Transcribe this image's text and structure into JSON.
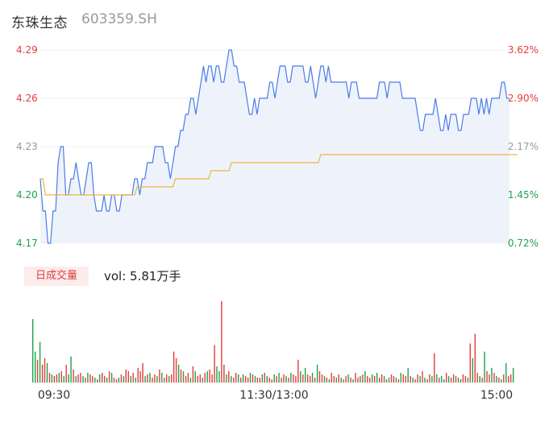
{
  "header": {
    "name": "东珠生态",
    "code": "603359.SH"
  },
  "volume_badge": "日成交量",
  "volume_text": "vol: 5.81万手",
  "colors": {
    "price_line": "#4a7ce8",
    "avg_line": "#f0b43c",
    "area_fill": "#eef3fb",
    "up": "#e53b3b",
    "down": "#1aa34a",
    "neutral": "#999999"
  },
  "chart_data": [
    {
      "type": "line",
      "title": "",
      "x_labels": [
        "09:30",
        "11:30/13:00",
        "15:00"
      ],
      "ylim": [
        4.17,
        4.29
      ],
      "left_ticks": [
        "4.29",
        "4.26",
        "4.23",
        "4.20",
        "4.17"
      ],
      "right_ticks": [
        "3.62%",
        "2.90%",
        "2.17%",
        "1.45%",
        "0.72%"
      ],
      "series": [
        {
          "key": "price",
          "values": [
            4.21,
            4.19,
            4.19,
            4.17,
            4.17,
            4.19,
            4.19,
            4.22,
            4.23,
            4.23,
            4.2,
            4.2,
            4.21,
            4.21,
            4.22,
            4.21,
            4.2,
            4.2,
            4.21,
            4.22,
            4.22,
            4.2,
            4.19,
            4.19,
            4.19,
            4.2,
            4.19,
            4.19,
            4.2,
            4.2,
            4.19,
            4.19,
            4.2,
            4.2,
            4.2,
            4.2,
            4.2,
            4.21,
            4.21,
            4.2,
            4.21,
            4.21,
            4.22,
            4.22,
            4.22,
            4.23,
            4.23,
            4.23,
            4.23,
            4.22,
            4.22,
            4.21,
            4.22,
            4.23,
            4.23,
            4.24,
            4.24,
            4.25,
            4.25,
            4.26,
            4.26,
            4.25,
            4.26,
            4.27,
            4.28,
            4.27,
            4.28,
            4.28,
            4.27,
            4.28,
            4.28,
            4.27,
            4.27,
            4.28,
            4.29,
            4.29,
            4.28,
            4.28,
            4.27,
            4.27,
            4.27,
            4.26,
            4.25,
            4.25,
            4.26,
            4.25,
            4.26,
            4.26,
            4.26,
            4.26,
            4.27,
            4.27,
            4.26,
            4.27,
            4.28,
            4.28,
            4.28,
            4.27,
            4.27,
            4.28,
            4.28,
            4.28,
            4.28,
            4.28,
            4.27,
            4.27,
            4.28,
            4.27,
            4.26,
            4.27,
            4.28,
            4.28,
            4.27,
            4.28,
            4.27,
            4.27,
            4.27,
            4.27,
            4.27,
            4.27,
            4.27,
            4.26,
            4.27,
            4.27,
            4.27,
            4.26,
            4.26,
            4.26,
            4.26,
            4.26,
            4.26,
            4.26,
            4.26,
            4.27,
            4.27,
            4.27,
            4.26,
            4.27,
            4.27,
            4.27,
            4.27,
            4.27,
            4.26,
            4.26,
            4.26,
            4.26,
            4.26,
            4.26,
            4.25,
            4.24,
            4.24,
            4.25,
            4.25,
            4.25,
            4.25,
            4.26,
            4.25,
            4.24,
            4.24,
            4.25,
            4.24,
            4.25,
            4.25,
            4.25,
            4.24,
            4.24,
            4.25,
            4.25,
            4.25,
            4.26,
            4.26,
            4.26,
            4.25,
            4.26,
            4.25,
            4.26,
            4.25,
            4.26,
            4.26,
            4.26,
            4.26,
            4.27,
            4.27,
            4.26,
            4.26
          ]
        },
        {
          "key": "average",
          "values": [
            4.21,
            4.21,
            4.2,
            4.2,
            4.2,
            4.2,
            4.2,
            4.2,
            4.2,
            4.2,
            4.2,
            4.2,
            4.2,
            4.2,
            4.2,
            4.2,
            4.2,
            4.2,
            4.2,
            4.2,
            4.2,
            4.2,
            4.2,
            4.2,
            4.2,
            4.2,
            4.2,
            4.2,
            4.2,
            4.2,
            4.2,
            4.2,
            4.2,
            4.2,
            4.2,
            4.2,
            4.2,
            4.2,
            4.205,
            4.205,
            4.205,
            4.205,
            4.205,
            4.205,
            4.205,
            4.205,
            4.205,
            4.205,
            4.205,
            4.205,
            4.205,
            4.205,
            4.205,
            4.21,
            4.21,
            4.21,
            4.21,
            4.21,
            4.21,
            4.21,
            4.21,
            4.21,
            4.21,
            4.21,
            4.21,
            4.21,
            4.21,
            4.215,
            4.215,
            4.215,
            4.215,
            4.215,
            4.215,
            4.215,
            4.215,
            4.22,
            4.22,
            4.22,
            4.22,
            4.22,
            4.22,
            4.22,
            4.22,
            4.22,
            4.22,
            4.22,
            4.22,
            4.22,
            4.22,
            4.22,
            4.22,
            4.22,
            4.22,
            4.22,
            4.22,
            4.22,
            4.22,
            4.22,
            4.22,
            4.22,
            4.22,
            4.22,
            4.22,
            4.22,
            4.22,
            4.22,
            4.22,
            4.22,
            4.22,
            4.22,
            4.225,
            4.225,
            4.225,
            4.225,
            4.225,
            4.225,
            4.225,
            4.225,
            4.225,
            4.225,
            4.225,
            4.225,
            4.225,
            4.225,
            4.225,
            4.225,
            4.225,
            4.225,
            4.225,
            4.225,
            4.225,
            4.225,
            4.225,
            4.225,
            4.225,
            4.225,
            4.225,
            4.225,
            4.225,
            4.225,
            4.225,
            4.225,
            4.225,
            4.225,
            4.225,
            4.225,
            4.225,
            4.225,
            4.225,
            4.225,
            4.225,
            4.225,
            4.225,
            4.225,
            4.225,
            4.225,
            4.225,
            4.225,
            4.225,
            4.225,
            4.225,
            4.225,
            4.225,
            4.225,
            4.225,
            4.225,
            4.225,
            4.225,
            4.225,
            4.225,
            4.225,
            4.225,
            4.225,
            4.225,
            4.225,
            4.225,
            4.225,
            4.225,
            4.225,
            4.225,
            4.225,
            4.225,
            4.225,
            4.225,
            4.225,
            4.225,
            4.225,
            4.225
          ]
        }
      ]
    },
    {
      "type": "bar",
      "title": "",
      "series": [
        {
          "key": "volume",
          "values": [
            78,
            38,
            28,
            50,
            22,
            30,
            24,
            12,
            10,
            8,
            10,
            12,
            14,
            8,
            22,
            10,
            32,
            16,
            8,
            10,
            12,
            8,
            6,
            12,
            10,
            8,
            6,
            4,
            10,
            12,
            8,
            6,
            14,
            12,
            6,
            4,
            6,
            10,
            8,
            16,
            14,
            8,
            12,
            6,
            18,
            14,
            24,
            8,
            10,
            12,
            6,
            10,
            8,
            16,
            12,
            6,
            10,
            8,
            10,
            38,
            30,
            22,
            16,
            14,
            8,
            12,
            6,
            20,
            14,
            8,
            10,
            6,
            12,
            14,
            16,
            10,
            46,
            20,
            14,
            100,
            22,
            10,
            14,
            8,
            6,
            12,
            10,
            6,
            10,
            8,
            6,
            12,
            10,
            8,
            6,
            6,
            10,
            12,
            8,
            6,
            4,
            10,
            8,
            12,
            6,
            10,
            8,
            6,
            12,
            10,
            8,
            28,
            14,
            10,
            18,
            10,
            8,
            12,
            6,
            22,
            14,
            10,
            8,
            6,
            4,
            12,
            8,
            6,
            10,
            6,
            4,
            8,
            10,
            6,
            4,
            12,
            6,
            8,
            10,
            14,
            8,
            6,
            10,
            8,
            12,
            6,
            10,
            8,
            4,
            6,
            10,
            8,
            6,
            4,
            12,
            10,
            8,
            18,
            8,
            6,
            4,
            10,
            8,
            14,
            6,
            4,
            10,
            8,
            36,
            10,
            6,
            8,
            4,
            12,
            8,
            6,
            10,
            8,
            6,
            4,
            10,
            8,
            6,
            48,
            30,
            60,
            12,
            8,
            6,
            38,
            14,
            10,
            18,
            12,
            8,
            6,
            4,
            10,
            24,
            8,
            10,
            18
          ],
          "colors": [
            "d",
            "d",
            "u",
            "d",
            "u",
            "u",
            "d",
            "u",
            "d",
            "u",
            "u",
            "d",
            "u",
            "d",
            "u",
            "d",
            "d",
            "u",
            "d",
            "u",
            "u",
            "d",
            "u",
            "d",
            "u",
            "u",
            "d",
            "u",
            "d",
            "u",
            "u",
            "d",
            "u",
            "d",
            "u",
            "u",
            "d",
            "u",
            "d",
            "u",
            "u",
            "d",
            "u",
            "d",
            "u",
            "u",
            "u",
            "d",
            "u",
            "d",
            "u",
            "u",
            "d",
            "u",
            "d",
            "u",
            "u",
            "d",
            "u",
            "u",
            "u",
            "d",
            "u",
            "d",
            "u",
            "u",
            "d",
            "u",
            "d",
            "u",
            "u",
            "d",
            "u",
            "d",
            "u",
            "u",
            "u",
            "d",
            "d",
            "u",
            "u",
            "d",
            "u",
            "d",
            "u",
            "u",
            "d",
            "u",
            "d",
            "u",
            "u",
            "d",
            "u",
            "d",
            "u",
            "u",
            "d",
            "u",
            "d",
            "u",
            "u",
            "d",
            "u",
            "d",
            "u",
            "u",
            "d",
            "u",
            "d",
            "u",
            "u",
            "u",
            "d",
            "u",
            "d",
            "u",
            "u",
            "d",
            "u",
            "d",
            "u",
            "u",
            "d",
            "u",
            "d",
            "u",
            "u",
            "d",
            "u",
            "d",
            "u",
            "u",
            "d",
            "u",
            "d",
            "u",
            "u",
            "d",
            "u",
            "d",
            "u",
            "u",
            "d",
            "u",
            "d",
            "u",
            "u",
            "d",
            "u",
            "d",
            "u",
            "u",
            "d",
            "u",
            "d",
            "u",
            "u",
            "d",
            "u",
            "d",
            "u",
            "u",
            "d",
            "u",
            "d",
            "u",
            "u",
            "d",
            "u",
            "d",
            "u",
            "d",
            "d",
            "u",
            "d",
            "u",
            "u",
            "d",
            "u",
            "d",
            "u",
            "u",
            "d",
            "u",
            "d",
            "u",
            "u",
            "d",
            "u",
            "d",
            "u",
            "u",
            "d",
            "u",
            "d",
            "u",
            "d",
            "u",
            "d",
            "u",
            "u",
            "d",
            "u",
            "d",
            "u",
            "u",
            "d",
            "u",
            "n"
          ]
        }
      ]
    }
  ]
}
